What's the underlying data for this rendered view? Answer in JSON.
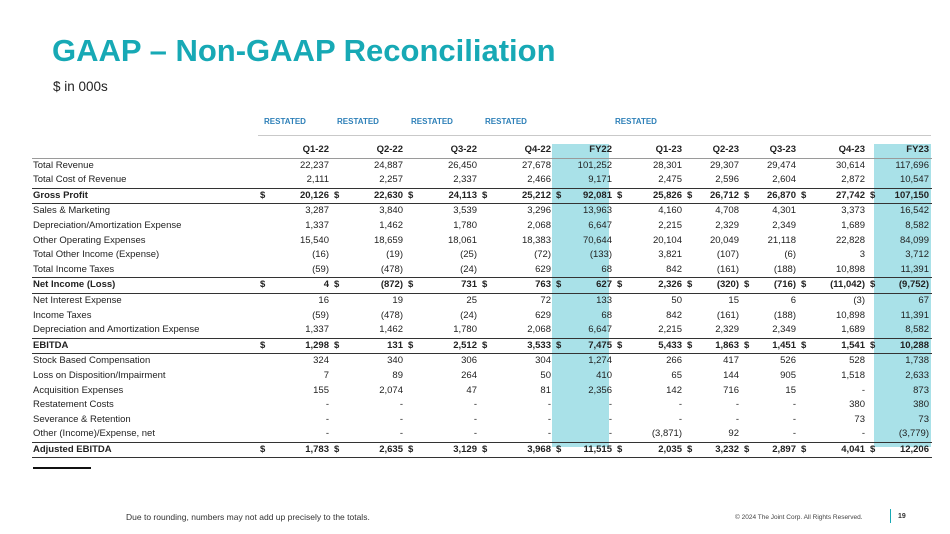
{
  "title": "GAAP – Non-GAAP Reconciliation",
  "subtitle": "$ in 000s",
  "restated_labels": [
    "RESTATED",
    "RESTATED",
    "RESTATED",
    "RESTATED",
    "RESTATED"
  ],
  "columns": [
    "Q1-22",
    "Q2-22",
    "Q3-22",
    "Q4-22",
    "FY22",
    "Q1-23",
    "Q2-23",
    "Q3-23",
    "Q4-23",
    "FY23"
  ],
  "rows": [
    {
      "label": "Total Revenue",
      "values": [
        "22,237",
        "24,887",
        "26,450",
        "27,678",
        "101,252",
        "28,301",
        "29,307",
        "29,474",
        "30,614",
        "117,696"
      ]
    },
    {
      "label": "Total Cost of Revenue",
      "values": [
        "2,111",
        "2,257",
        "2,337",
        "2,466",
        "9,171",
        "2,475",
        "2,596",
        "2,604",
        "2,872",
        "10,547"
      ]
    },
    {
      "label": "Gross Profit",
      "values": [
        "20,126",
        "22,630",
        "24,113",
        "25,212",
        "92,081",
        "25,826",
        "26,712",
        "26,870",
        "27,742",
        "107,150"
      ]
    },
    {
      "label": "Sales & Marketing",
      "values": [
        "3,287",
        "3,840",
        "3,539",
        "3,296",
        "13,963",
        "4,160",
        "4,708",
        "4,301",
        "3,373",
        "16,542"
      ]
    },
    {
      "label": "Depreciation/Amortization Expense",
      "values": [
        "1,337",
        "1,462",
        "1,780",
        "2,068",
        "6,647",
        "2,215",
        "2,329",
        "2,349",
        "1,689",
        "8,582"
      ]
    },
    {
      "label": "Other Operating Expenses",
      "values": [
        "15,540",
        "18,659",
        "18,061",
        "18,383",
        "70,644",
        "20,104",
        "20,049",
        "21,118",
        "22,828",
        "84,099"
      ]
    },
    {
      "label": "Total Other Income (Expense)",
      "values": [
        "(16)",
        "(19)",
        "(25)",
        "(72)",
        "(133)",
        "3,821",
        "(107)",
        "(6)",
        "3",
        "3,712"
      ]
    },
    {
      "label": "Total Income Taxes",
      "values": [
        "(59)",
        "(478)",
        "(24)",
        "629",
        "68",
        "842",
        "(161)",
        "(188)",
        "10,898",
        "11,391"
      ]
    },
    {
      "label": "Net Income (Loss)",
      "values": [
        "4",
        "(872)",
        "731",
        "763",
        "627",
        "2,326",
        "(320)",
        "(716)",
        "(11,042)",
        "(9,752)"
      ]
    },
    {
      "label": "Net Interest Expense",
      "values": [
        "16",
        "19",
        "25",
        "72",
        "133",
        "50",
        "15",
        "6",
        "(3)",
        "67"
      ]
    },
    {
      "label": "Income Taxes",
      "values": [
        "(59)",
        "(478)",
        "(24)",
        "629",
        "68",
        "842",
        "(161)",
        "(188)",
        "10,898",
        "11,391"
      ]
    },
    {
      "label": "Depreciation and Amortization Expense",
      "values": [
        "1,337",
        "1,462",
        "1,780",
        "2,068",
        "6,647",
        "2,215",
        "2,329",
        "2,349",
        "1,689",
        "8,582"
      ]
    },
    {
      "label": "EBITDA",
      "values": [
        "1,298",
        "131",
        "2,512",
        "3,533",
        "7,475",
        "5,433",
        "1,863",
        "1,451",
        "1,541",
        "10,288"
      ]
    },
    {
      "label": "Stock Based Compensation",
      "values": [
        "324",
        "340",
        "306",
        "304",
        "1,274",
        "266",
        "417",
        "526",
        "528",
        "1,738"
      ]
    },
    {
      "label": "Loss on Disposition/Impairment",
      "values": [
        "7",
        "89",
        "264",
        "50",
        "410",
        "65",
        "144",
        "905",
        "1,518",
        "2,633"
      ]
    },
    {
      "label": "Acquisition Expenses",
      "values": [
        "155",
        "2,074",
        "47",
        "81",
        "2,356",
        "142",
        "716",
        "15",
        "-",
        "873"
      ]
    },
    {
      "label": "Restatement Costs",
      "values": [
        "-",
        "-",
        "-",
        "-",
        "-",
        "-",
        "-",
        "-",
        "380",
        "380"
      ]
    },
    {
      "label": "Severance & Retention",
      "values": [
        "-",
        "-",
        "-",
        "-",
        "-",
        "-",
        "-",
        "-",
        "73",
        "73"
      ]
    },
    {
      "label": "Other (Income)/Expense, net",
      "values": [
        "-",
        "-",
        "-",
        "-",
        "-",
        "(3,871)",
        "92",
        "-",
        "-",
        "(3,779)"
      ]
    },
    {
      "label": "Adjusted EBITDA",
      "values": [
        "1,783",
        "2,635",
        "3,129",
        "3,968",
        "11,515",
        "2,035",
        "3,232",
        "2,897",
        "4,041",
        "12,206"
      ]
    }
  ],
  "currency_symbol": "$",
  "footnote": "Due to rounding, numbers may not add up precisely to the totals.",
  "copyright": "© 2024 The Joint Corp. All Rights Reserved.",
  "page_number": "19",
  "colors": {
    "accent": "#17a9b5",
    "fy_highlight": "#a9e1e8",
    "restated": "#2e80b8"
  }
}
